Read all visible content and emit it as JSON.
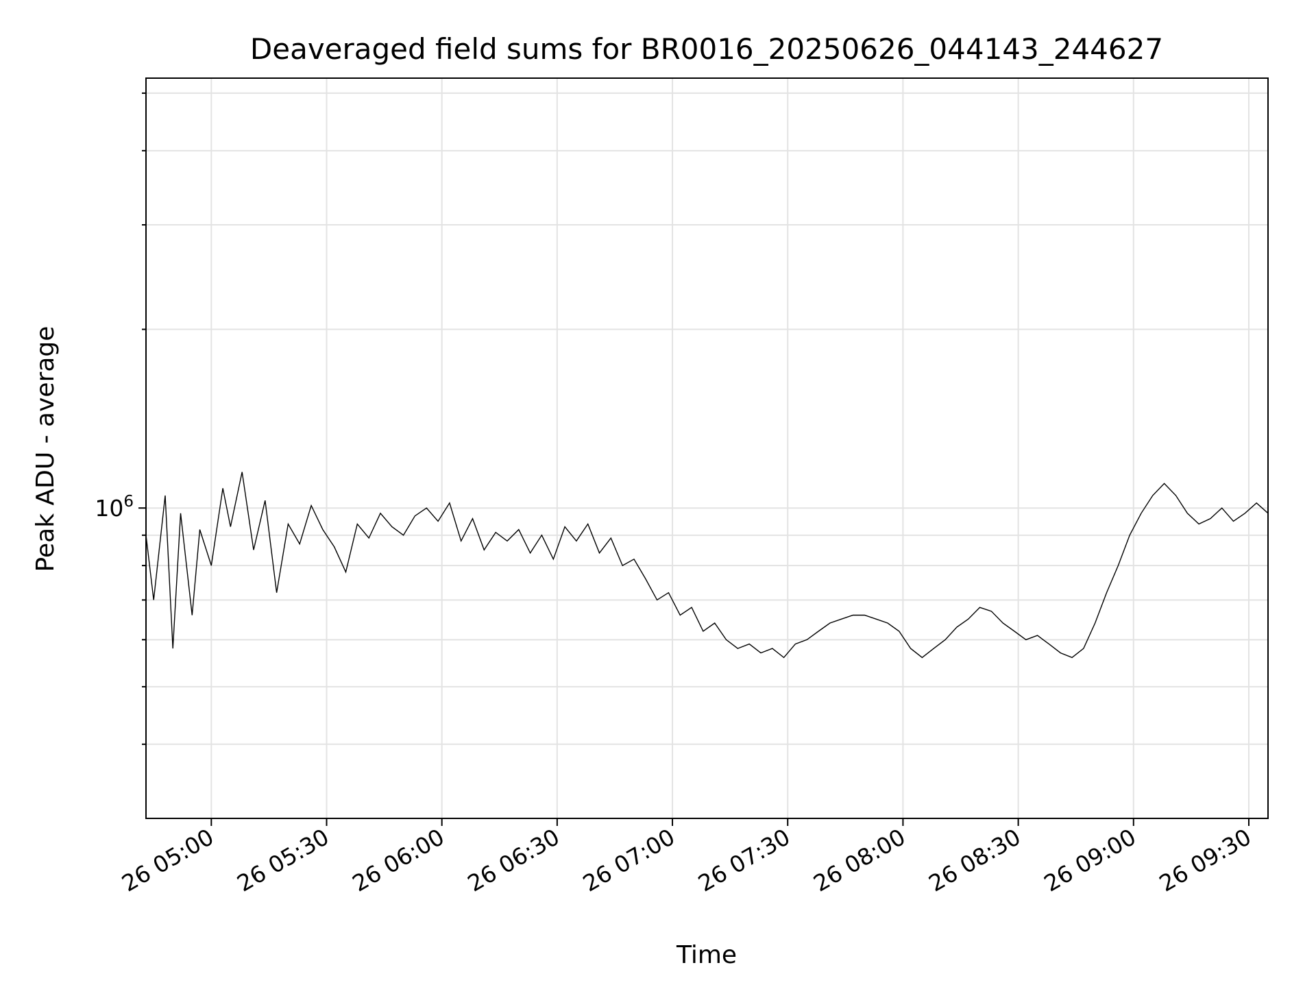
{
  "chart_data": {
    "type": "line",
    "title": "Deaveraged field sums for BR0016_20250626_044143_244627",
    "xlabel": "Time",
    "ylabel": "Peak ADU - average",
    "yscale": "log",
    "grid": true,
    "x_range": [
      "2025-06-26 04:43",
      "2025-06-26 09:35"
    ],
    "ylim": [
      300000,
      5300000
    ],
    "x_ticks": [
      {
        "time": "2025-06-26 05:00",
        "label": "26 05:00"
      },
      {
        "time": "2025-06-26 05:30",
        "label": "26 05:30"
      },
      {
        "time": "2025-06-26 06:00",
        "label": "26 06:00"
      },
      {
        "time": "2025-06-26 06:30",
        "label": "26 06:30"
      },
      {
        "time": "2025-06-26 07:00",
        "label": "26 07:00"
      },
      {
        "time": "2025-06-26 07:30",
        "label": "26 07:30"
      },
      {
        "time": "2025-06-26 08:00",
        "label": "26 08:00"
      },
      {
        "time": "2025-06-26 08:30",
        "label": "26 08:30"
      },
      {
        "time": "2025-06-26 09:00",
        "label": "26 09:00"
      },
      {
        "time": "2025-06-26 09:30",
        "label": "26 09:30"
      }
    ],
    "y_major_ticks": [
      {
        "value": 1000000,
        "base": "10",
        "exp": "6"
      }
    ],
    "y_minor_ticks": [
      400000,
      500000,
      600000,
      700000,
      800000,
      900000,
      2000000,
      3000000,
      4000000,
      5000000
    ],
    "series": [
      {
        "color": "#000000",
        "points": [
          [
            "2025-06-26 04:43",
            900000
          ],
          [
            "2025-06-26 04:45",
            700000
          ],
          [
            "2025-06-26 04:48",
            1050000
          ],
          [
            "2025-06-26 04:50",
            580000
          ],
          [
            "2025-06-26 04:52",
            980000
          ],
          [
            "2025-06-26 04:55",
            660000
          ],
          [
            "2025-06-26 04:57",
            920000
          ],
          [
            "2025-06-26 05:00",
            800000
          ],
          [
            "2025-06-26 05:03",
            1080000
          ],
          [
            "2025-06-26 05:05",
            930000
          ],
          [
            "2025-06-26 05:08",
            1150000
          ],
          [
            "2025-06-26 05:11",
            850000
          ],
          [
            "2025-06-26 05:14",
            1030000
          ],
          [
            "2025-06-26 05:17",
            720000
          ],
          [
            "2025-06-26 05:20",
            940000
          ],
          [
            "2025-06-26 05:23",
            870000
          ],
          [
            "2025-06-26 05:26",
            1010000
          ],
          [
            "2025-06-26 05:29",
            920000
          ],
          [
            "2025-06-26 05:32",
            860000
          ],
          [
            "2025-06-26 05:35",
            780000
          ],
          [
            "2025-06-26 05:38",
            940000
          ],
          [
            "2025-06-26 05:41",
            890000
          ],
          [
            "2025-06-26 05:44",
            980000
          ],
          [
            "2025-06-26 05:47",
            930000
          ],
          [
            "2025-06-26 05:50",
            900000
          ],
          [
            "2025-06-26 05:53",
            970000
          ],
          [
            "2025-06-26 05:56",
            1000000
          ],
          [
            "2025-06-26 05:59",
            950000
          ],
          [
            "2025-06-26 06:02",
            1020000
          ],
          [
            "2025-06-26 06:05",
            880000
          ],
          [
            "2025-06-26 06:08",
            960000
          ],
          [
            "2025-06-26 06:11",
            850000
          ],
          [
            "2025-06-26 06:14",
            910000
          ],
          [
            "2025-06-26 06:17",
            880000
          ],
          [
            "2025-06-26 06:20",
            920000
          ],
          [
            "2025-06-26 06:23",
            840000
          ],
          [
            "2025-06-26 06:26",
            900000
          ],
          [
            "2025-06-26 06:29",
            820000
          ],
          [
            "2025-06-26 06:32",
            930000
          ],
          [
            "2025-06-26 06:35",
            880000
          ],
          [
            "2025-06-26 06:38",
            940000
          ],
          [
            "2025-06-26 06:41",
            840000
          ],
          [
            "2025-06-26 06:44",
            890000
          ],
          [
            "2025-06-26 06:47",
            800000
          ],
          [
            "2025-06-26 06:50",
            820000
          ],
          [
            "2025-06-26 06:53",
            760000
          ],
          [
            "2025-06-26 06:56",
            700000
          ],
          [
            "2025-06-26 06:59",
            720000
          ],
          [
            "2025-06-26 07:02",
            660000
          ],
          [
            "2025-06-26 07:05",
            680000
          ],
          [
            "2025-06-26 07:08",
            620000
          ],
          [
            "2025-06-26 07:11",
            640000
          ],
          [
            "2025-06-26 07:14",
            600000
          ],
          [
            "2025-06-26 07:17",
            580000
          ],
          [
            "2025-06-26 07:20",
            590000
          ],
          [
            "2025-06-26 07:23",
            570000
          ],
          [
            "2025-06-26 07:26",
            580000
          ],
          [
            "2025-06-26 07:29",
            560000
          ],
          [
            "2025-06-26 07:32",
            590000
          ],
          [
            "2025-06-26 07:35",
            600000
          ],
          [
            "2025-06-26 07:38",
            620000
          ],
          [
            "2025-06-26 07:41",
            640000
          ],
          [
            "2025-06-26 07:44",
            650000
          ],
          [
            "2025-06-26 07:47",
            660000
          ],
          [
            "2025-06-26 07:50",
            660000
          ],
          [
            "2025-06-26 07:53",
            650000
          ],
          [
            "2025-06-26 07:56",
            640000
          ],
          [
            "2025-06-26 07:59",
            620000
          ],
          [
            "2025-06-26 08:02",
            580000
          ],
          [
            "2025-06-26 08:05",
            560000
          ],
          [
            "2025-06-26 08:08",
            580000
          ],
          [
            "2025-06-26 08:11",
            600000
          ],
          [
            "2025-06-26 08:14",
            630000
          ],
          [
            "2025-06-26 08:17",
            650000
          ],
          [
            "2025-06-26 08:20",
            680000
          ],
          [
            "2025-06-26 08:23",
            670000
          ],
          [
            "2025-06-26 08:26",
            640000
          ],
          [
            "2025-06-26 08:29",
            620000
          ],
          [
            "2025-06-26 08:32",
            600000
          ],
          [
            "2025-06-26 08:35",
            610000
          ],
          [
            "2025-06-26 08:38",
            590000
          ],
          [
            "2025-06-26 08:41",
            570000
          ],
          [
            "2025-06-26 08:44",
            560000
          ],
          [
            "2025-06-26 08:47",
            580000
          ],
          [
            "2025-06-26 08:50",
            640000
          ],
          [
            "2025-06-26 08:53",
            720000
          ],
          [
            "2025-06-26 08:56",
            800000
          ],
          [
            "2025-06-26 08:59",
            900000
          ],
          [
            "2025-06-26 09:02",
            980000
          ],
          [
            "2025-06-26 09:05",
            1050000
          ],
          [
            "2025-06-26 09:08",
            1100000
          ],
          [
            "2025-06-26 09:11",
            1050000
          ],
          [
            "2025-06-26 09:14",
            980000
          ],
          [
            "2025-06-26 09:17",
            940000
          ],
          [
            "2025-06-26 09:20",
            960000
          ],
          [
            "2025-06-26 09:23",
            1000000
          ],
          [
            "2025-06-26 09:26",
            950000
          ],
          [
            "2025-06-26 09:29",
            980000
          ],
          [
            "2025-06-26 09:32",
            1020000
          ],
          [
            "2025-06-26 09:35",
            980000
          ]
        ]
      }
    ]
  }
}
